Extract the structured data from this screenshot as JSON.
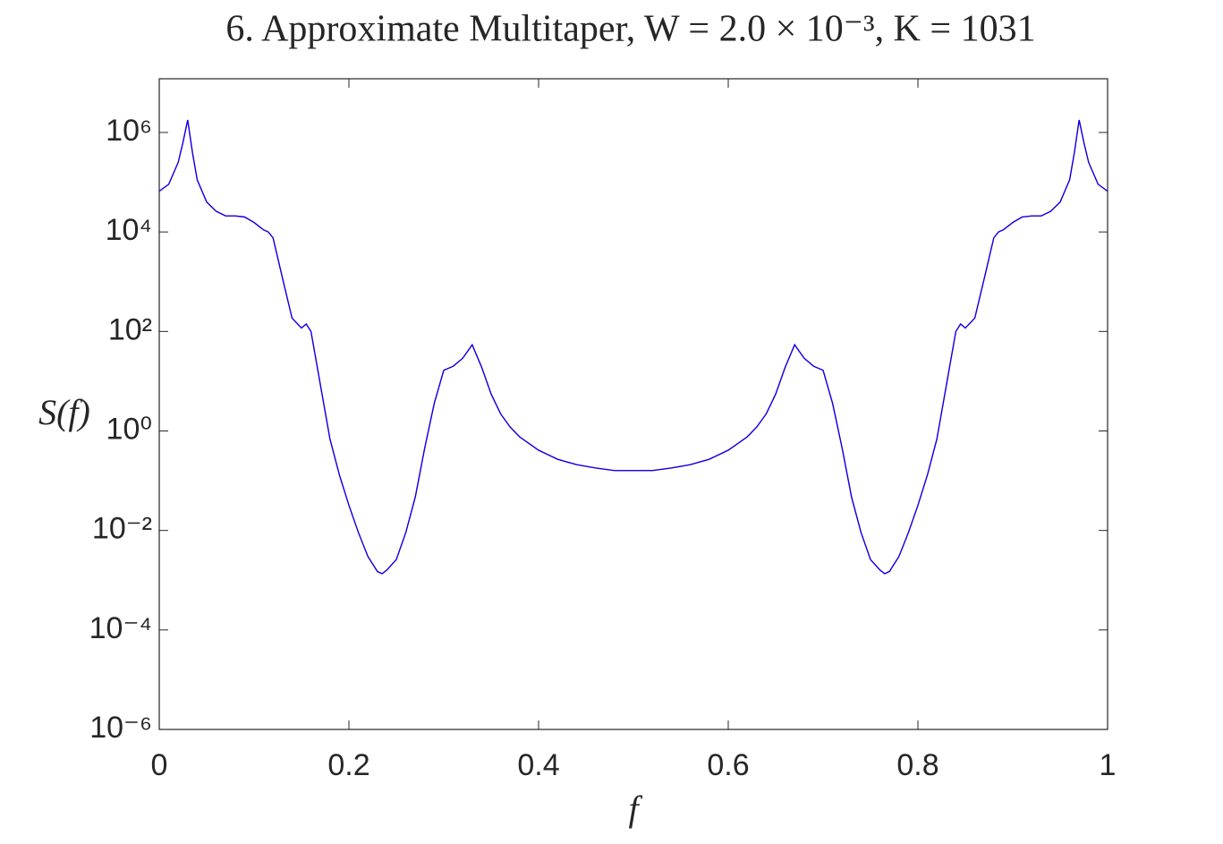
{
  "chart_data": {
    "type": "line",
    "title": "6. Approximate Multitaper, W = 2.0 × 10⁻³, K = 1031",
    "xlabel": "f",
    "ylabel": "S(f)",
    "x": [
      0,
      0.01,
      0.02,
      0.025,
      0.03,
      0.035,
      0.04,
      0.05,
      0.06,
      0.07,
      0.08,
      0.09,
      0.1,
      0.11,
      0.115,
      0.12,
      0.13,
      0.14,
      0.15,
      0.155,
      0.16,
      0.17,
      0.18,
      0.19,
      0.2,
      0.21,
      0.22,
      0.23,
      0.235,
      0.24,
      0.25,
      0.26,
      0.27,
      0.28,
      0.29,
      0.3,
      0.31,
      0.32,
      0.33,
      0.34,
      0.35,
      0.36,
      0.37,
      0.38,
      0.4,
      0.42,
      0.44,
      0.46,
      0.48,
      0.5,
      0.52,
      0.54,
      0.56,
      0.58,
      0.6,
      0.62,
      0.63,
      0.64,
      0.65,
      0.66,
      0.67,
      0.68,
      0.69,
      0.7,
      0.71,
      0.72,
      0.73,
      0.74,
      0.75,
      0.76,
      0.765,
      0.77,
      0.78,
      0.79,
      0.8,
      0.81,
      0.82,
      0.83,
      0.84,
      0.845,
      0.85,
      0.86,
      0.87,
      0.88,
      0.885,
      0.89,
      0.9,
      0.91,
      0.92,
      0.93,
      0.94,
      0.95,
      0.96,
      0.965,
      0.97,
      0.975,
      0.98,
      0.99,
      1.0
    ],
    "series": [
      {
        "color": "#ff0000",
        "values": [
          66000,
          91000,
          251000,
          631000,
          1780000,
          398000,
          112000,
          40000,
          26000,
          21000,
          21000,
          20000,
          15500,
          11000,
          10000,
          7600,
          1170,
          186,
          117,
          141,
          100,
          8.3,
          0.69,
          0.13,
          0.032,
          0.0091,
          0.003,
          0.0015,
          0.00135,
          0.0016,
          0.0026,
          0.0091,
          0.047,
          0.46,
          3.6,
          16.6,
          20,
          29,
          54,
          19,
          5.5,
          2.2,
          1.2,
          0.76,
          0.41,
          0.27,
          0.21,
          0.18,
          0.16,
          0.16,
          0.16,
          0.18,
          0.21,
          0.27,
          0.41,
          0.76,
          1.2,
          2.2,
          5.5,
          19,
          54,
          29,
          20,
          16.6,
          3.6,
          0.46,
          0.047,
          0.0091,
          0.0026,
          0.0016,
          0.00135,
          0.0015,
          0.003,
          0.0091,
          0.032,
          0.13,
          0.69,
          8.3,
          100,
          141,
          117,
          186,
          1170,
          7600,
          10000,
          11000,
          15500,
          20000,
          21000,
          21000,
          26000,
          40000,
          112000,
          398000,
          1780000,
          631000,
          251000,
          91000,
          66000
        ]
      },
      {
        "color": "#0000ff",
        "values": [
          66000,
          91000,
          251000,
          631000,
          1780000,
          398000,
          112000,
          40000,
          26000,
          21000,
          21000,
          20000,
          15500,
          11000,
          10000,
          7600,
          1170,
          186,
          117,
          141,
          100,
          8.3,
          0.69,
          0.13,
          0.032,
          0.0091,
          0.003,
          0.0015,
          0.00135,
          0.0016,
          0.0026,
          0.0091,
          0.047,
          0.46,
          3.6,
          16.6,
          20,
          29,
          54,
          19,
          5.5,
          2.2,
          1.2,
          0.76,
          0.41,
          0.27,
          0.21,
          0.18,
          0.16,
          0.16,
          0.16,
          0.18,
          0.21,
          0.27,
          0.41,
          0.76,
          1.2,
          2.2,
          5.5,
          19,
          54,
          29,
          20,
          16.6,
          3.6,
          0.46,
          0.047,
          0.0091,
          0.0026,
          0.0016,
          0.00135,
          0.0015,
          0.003,
          0.0091,
          0.032,
          0.13,
          0.69,
          8.3,
          100,
          141,
          117,
          186,
          1170,
          7600,
          10000,
          11000,
          15500,
          20000,
          21000,
          21000,
          26000,
          40000,
          112000,
          398000,
          1780000,
          631000,
          251000,
          91000,
          66000
        ]
      }
    ],
    "xlim": [
      0,
      1
    ],
    "xticks": [
      0,
      0.2,
      0.4,
      0.6,
      0.8,
      1
    ],
    "ylim": [
      1e-06,
      12000000
    ],
    "yscale": "log",
    "yticks": [
      {
        "value": 1e-06,
        "label": "10⁻⁶"
      },
      {
        "value": 0.0001,
        "label": "10⁻⁴"
      },
      {
        "value": 0.01,
        "label": "10⁻²"
      },
      {
        "value": 1,
        "label": "10⁰"
      },
      {
        "value": 100,
        "label": "10²"
      },
      {
        "value": 10000,
        "label": "10⁴"
      },
      {
        "value": 1000000,
        "label": "10⁶"
      }
    ],
    "grid": false
  }
}
